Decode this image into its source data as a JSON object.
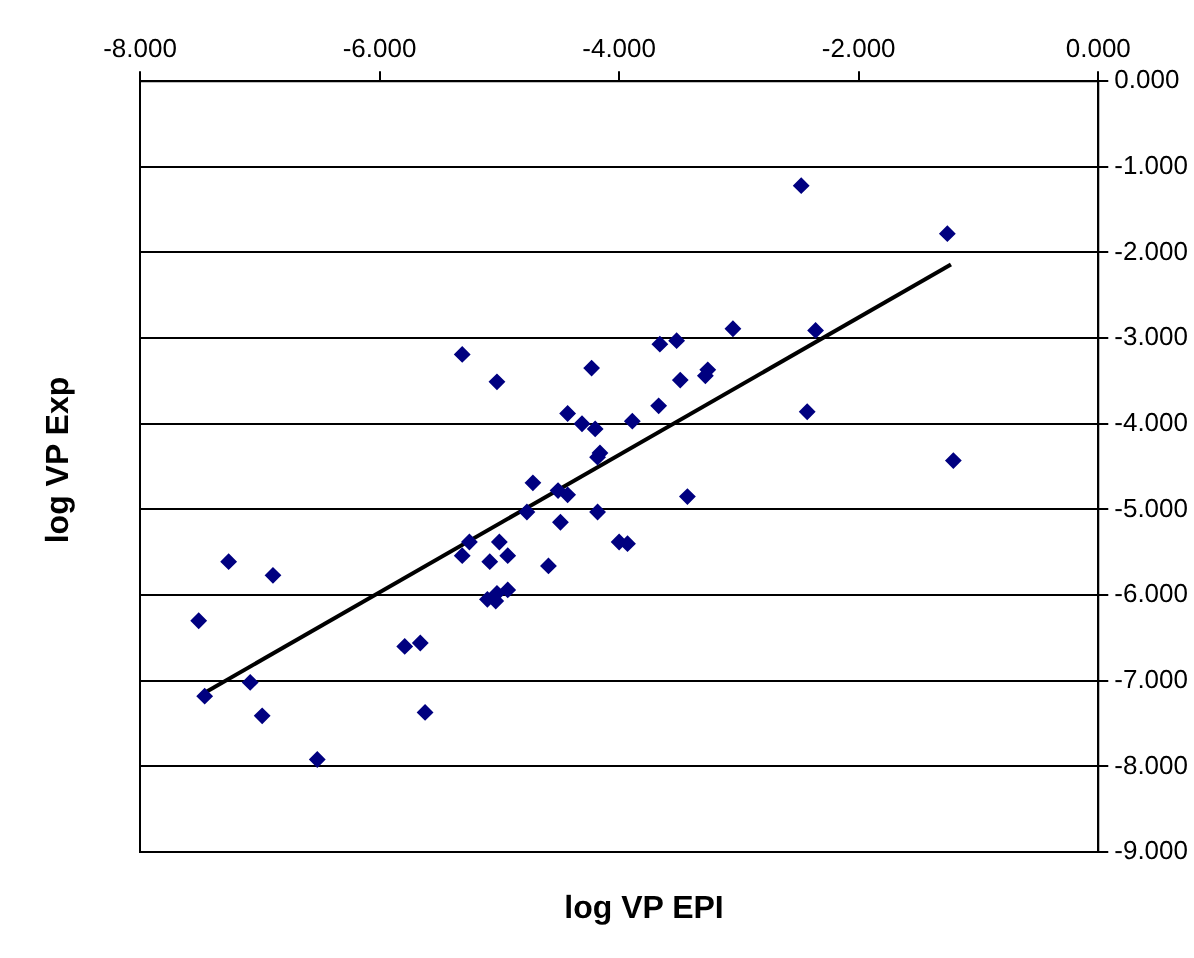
{
  "chart_data": {
    "type": "scatter",
    "xlabel": "log VP EPI",
    "ylabel": "log VP Exp",
    "xlim": [
      -8,
      0
    ],
    "ylim": [
      -9,
      0
    ],
    "xticks": [
      {
        "value": -8,
        "label": "-8.000"
      },
      {
        "value": -6,
        "label": "-6.000"
      },
      {
        "value": -4,
        "label": "-4.000"
      },
      {
        "value": -2,
        "label": "-2.000"
      },
      {
        "value": 0,
        "label": "0.000"
      }
    ],
    "yticks": [
      {
        "value": 0,
        "label": "0.000"
      },
      {
        "value": -1,
        "label": "-1.000"
      },
      {
        "value": -2,
        "label": "-2.000"
      },
      {
        "value": -3,
        "label": "-3.000"
      },
      {
        "value": -4,
        "label": "-4.000"
      },
      {
        "value": -5,
        "label": "-5.000"
      },
      {
        "value": -6,
        "label": "-6.000"
      },
      {
        "value": -7,
        "label": "-7.000"
      },
      {
        "value": -8,
        "label": "-8.000"
      },
      {
        "value": -9,
        "label": "-9.000"
      }
    ],
    "grid": "y",
    "legend": false,
    "series": [
      {
        "color": "#000080",
        "marker": "diamond",
        "x": [
          -7.51,
          -7.46,
          -7.26,
          -7.08,
          -6.98,
          -6.89,
          -6.52,
          -5.79,
          -5.66,
          -5.62,
          -5.31,
          -5.31,
          -5.25,
          -5.1,
          -5.02,
          -5.08,
          -5.0,
          -5.03,
          -5.02,
          -4.93,
          -4.93,
          -4.72,
          -4.77,
          -4.59,
          -4.51,
          -4.49,
          -4.43,
          -4.43,
          -4.31,
          -4.23,
          -4.2,
          -4.18,
          -4.18,
          -4.16,
          -4.0,
          -3.93,
          -3.89,
          -3.67,
          -3.66,
          -3.52,
          -3.49,
          -3.43,
          -3.28,
          -3.26,
          -3.05,
          -2.48,
          -2.43,
          -2.36,
          -1.26,
          -1.21
        ],
        "values": [
          -6.3,
          -7.18,
          -5.61,
          -7.02,
          -7.41,
          -5.77,
          -7.92,
          -6.6,
          -6.56,
          -7.37,
          -3.19,
          -5.54,
          -5.38,
          -6.05,
          -5.98,
          -5.61,
          -5.38,
          -6.07,
          -3.51,
          -5.54,
          -5.94,
          -4.69,
          -5.03,
          -5.66,
          -4.78,
          -5.15,
          -4.83,
          -3.88,
          -4.0,
          -3.35,
          -4.06,
          -5.03,
          -4.39,
          -4.34,
          -5.38,
          -5.4,
          -3.97,
          -3.79,
          -3.07,
          -3.03,
          -3.49,
          -4.85,
          -3.44,
          -3.37,
          -2.89,
          -1.22,
          -3.86,
          -2.91,
          -1.78,
          -4.43
        ]
      },
      {
        "type": "line",
        "color": "#000000",
        "marker": "none",
        "line_style": "solid",
        "x": [
          -7.46,
          -1.23
        ],
        "values": [
          -7.14,
          -2.14
        ]
      }
    ]
  }
}
